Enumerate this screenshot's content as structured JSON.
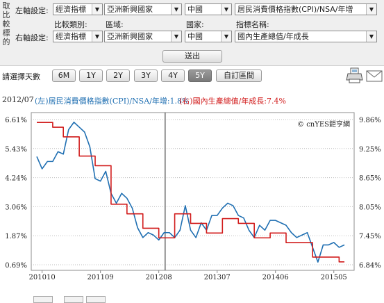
{
  "sidebar_label_chars": [
    "取",
    "比",
    "較",
    "標",
    "的"
  ],
  "form": {
    "left_label": "左軸設定:",
    "right_label": "右軸設定:",
    "hdr_compare_type": "比較類別:",
    "hdr_region": "區域:",
    "hdr_country": "國家:",
    "hdr_indicator": "指標名稱:",
    "left_type": "經濟指標",
    "left_region": "亞洲新興國家",
    "left_country": "中國",
    "left_indicator": "居民消費價格指數(CPI)/NSA/年增",
    "right_type": "經濟指標",
    "right_region": "亞洲新興國家",
    "right_country": "中國",
    "right_indicator": "國內生產總值/年成長",
    "submit": "送出"
  },
  "range": {
    "label": "請選擇天數",
    "buttons": [
      "6M",
      "1Y",
      "2Y",
      "3Y",
      "4Y",
      "5Y"
    ],
    "active": "5Y",
    "custom": "自訂區間"
  },
  "icons": {
    "print": "printer-icon",
    "mail": "envelope-icon"
  },
  "header": {
    "date": "2012/07",
    "left_series": "(左)居民消費價格指數(CPI)/NSA/年增:1.8%",
    "right_series": "(右)國內生產總值/年成長:7.4%"
  },
  "colors": {
    "left": "#1f6fb2",
    "right": "#d11a1a"
  },
  "chart_data": {
    "type": "line",
    "watermark": "© cnYES鉅亨網",
    "x_ticks": [
      "201010",
      "201109",
      "201208",
      "201307",
      "201406",
      "201505"
    ],
    "cursor_x": 24.2,
    "y_left": {
      "ticks": [
        "6.61%",
        "5.43%",
        "4.24%",
        "3.06%",
        "1.87%",
        "0.69%"
      ],
      "range": [
        0.69,
        6.61
      ]
    },
    "y_right": {
      "ticks": [
        "9.86%",
        "9.25%",
        "8.65%",
        "8.05%",
        "7.45%",
        "6.84%"
      ],
      "range": [
        6.84,
        9.86
      ]
    },
    "series": [
      {
        "name": "(左)居民消費價格指數(CPI)/NSA/年增",
        "axis": "left",
        "x": [
          0,
          1,
          2,
          3,
          4,
          5,
          6,
          7,
          8,
          9,
          10,
          11,
          12,
          13,
          14,
          15,
          16,
          17,
          18,
          19,
          20,
          21,
          22,
          23,
          24,
          25,
          26,
          27,
          28,
          29,
          30,
          31,
          32,
          33,
          34,
          35,
          36,
          37,
          38,
          39,
          40,
          41,
          42,
          43,
          44,
          45,
          46,
          47,
          48,
          49,
          50,
          51,
          52,
          53,
          54,
          55,
          56,
          57,
          58
        ],
        "values": [
          5.1,
          4.6,
          4.9,
          4.9,
          5.3,
          5.2,
          6.2,
          6.5,
          6.3,
          6.1,
          5.5,
          4.2,
          4.1,
          4.5,
          3.6,
          3.2,
          3.6,
          3.4,
          3.0,
          2.2,
          1.8,
          2.0,
          1.9,
          1.7,
          2.0,
          2.0,
          1.8,
          2.1,
          3.1,
          2.1,
          1.8,
          2.4,
          2.1,
          2.7,
          2.7,
          3.0,
          3.2,
          3.1,
          2.7,
          2.6,
          2.1,
          1.8,
          2.3,
          2.1,
          2.5,
          2.5,
          2.4,
          2.3,
          2.0,
          1.8,
          1.9,
          2.0,
          1.4,
          0.8,
          1.5,
          1.5,
          1.6,
          1.4,
          1.5
        ]
      },
      {
        "name": "(右)國內生產總值/年成長",
        "axis": "right",
        "x": [
          0,
          1,
          2,
          3,
          4,
          5,
          6,
          7,
          8,
          9,
          10,
          11,
          12,
          13,
          14,
          15,
          16,
          17,
          18,
          19,
          20,
          21,
          22,
          23,
          24,
          25,
          26,
          27,
          28,
          29,
          30,
          31,
          32,
          33,
          34,
          35,
          36,
          37,
          38,
          39,
          40,
          41,
          42,
          43,
          44,
          45,
          46,
          47,
          48,
          49,
          50,
          51,
          52,
          53,
          54,
          55,
          56,
          57,
          58
        ],
        "values": [
          9.8,
          9.8,
          9.8,
          9.7,
          9.7,
          9.5,
          9.5,
          9.5,
          9.1,
          9.1,
          9.1,
          8.9,
          8.9,
          8.9,
          8.1,
          8.1,
          8.1,
          7.9,
          7.9,
          7.9,
          7.6,
          7.6,
          7.6,
          7.4,
          7.4,
          7.4,
          7.9,
          7.9,
          7.9,
          7.7,
          7.7,
          7.7,
          7.5,
          7.5,
          7.5,
          7.8,
          7.8,
          7.8,
          7.7,
          7.7,
          7.7,
          7.4,
          7.4,
          7.4,
          7.5,
          7.5,
          7.5,
          7.3,
          7.3,
          7.3,
          7.3,
          7.3,
          7.0,
          7.0,
          7.0,
          7.0,
          7.0,
          6.9,
          6.9
        ]
      }
    ],
    "x_range": [
      0,
      58
    ],
    "grid": "horizontal dotted"
  }
}
